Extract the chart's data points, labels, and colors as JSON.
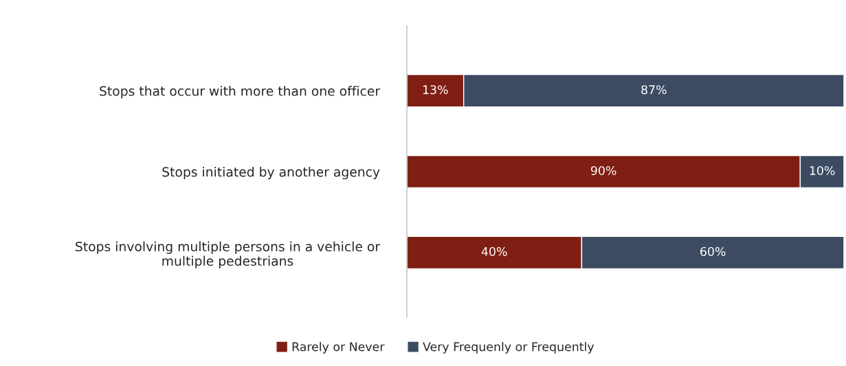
{
  "chart_data": {
    "type": "bar",
    "orientation": "horizontal",
    "stacked": true,
    "categories": [
      "Stops that occur with more than one officer",
      "Stops initiated by another agency",
      "Stops involving multiple persons in a vehicle or\nmultiple pedestrians"
    ],
    "series": [
      {
        "name": "Rarely or Never",
        "color": "#7f1f14",
        "values": [
          13,
          90,
          40
        ],
        "value_labels": [
          "13%",
          "90%",
          "40%"
        ]
      },
      {
        "name": "Very Frequenly or Frequently",
        "color": "#3c4b62",
        "values": [
          87,
          10,
          60
        ],
        "value_labels": [
          "87%",
          "10%",
          "60%"
        ]
      }
    ],
    "xlim": [
      0,
      100
    ],
    "tick_labels": "y",
    "legend": "bottom"
  }
}
